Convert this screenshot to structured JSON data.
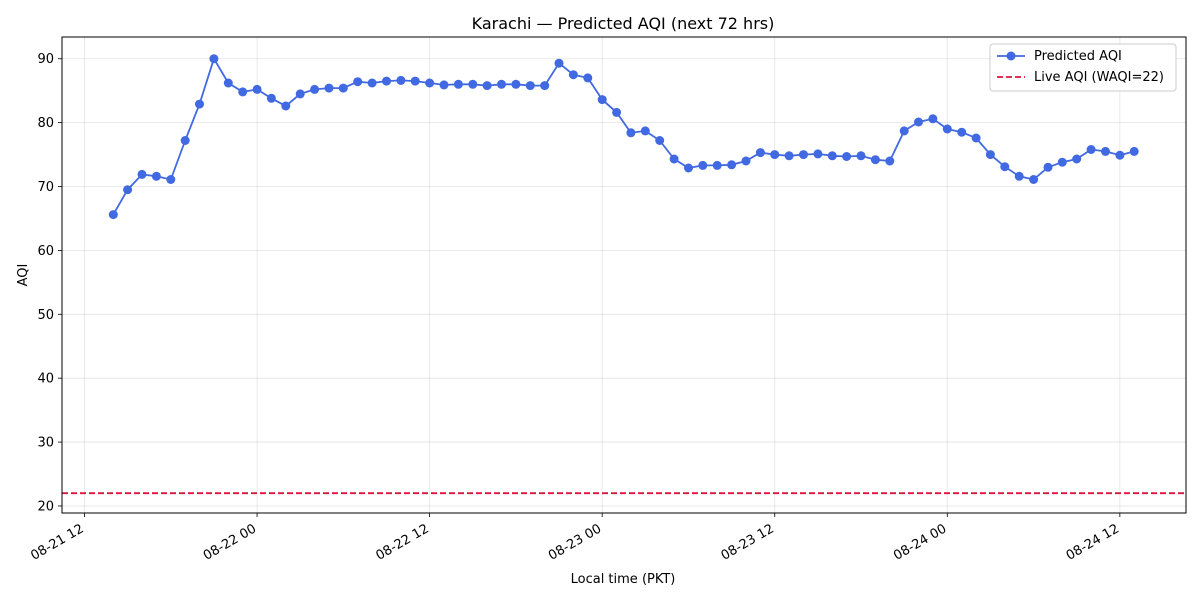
{
  "chart_data": {
    "type": "line",
    "title": "Karachi — Predicted AQI (next 72 hrs)",
    "xlabel": "Local time (PKT)",
    "ylabel": "AQI",
    "x_start": "08-21 14",
    "x_step_hours": 1,
    "x_ticks": [
      "08-21 12",
      "08-22 00",
      "08-22 12",
      "08-23 00",
      "08-23 12",
      "08-24 00",
      "08-24 12"
    ],
    "y_ticks": [
      20,
      30,
      40,
      50,
      60,
      70,
      80,
      90
    ],
    "ylim": [
      18.9,
      93.4
    ],
    "grid": true,
    "legend_position": "top-right",
    "series": [
      {
        "name": "Predicted AQI",
        "color": "#4169e1",
        "marker": "circle",
        "values": [
          65.6,
          69.5,
          71.9,
          71.6,
          71.1,
          77.2,
          82.9,
          90.0,
          86.2,
          84.8,
          85.2,
          83.8,
          82.6,
          84.5,
          85.2,
          85.4,
          85.4,
          86.4,
          86.2,
          86.5,
          86.6,
          86.5,
          86.2,
          85.9,
          86.0,
          86.0,
          85.8,
          86.0,
          86.0,
          85.8,
          85.8,
          89.3,
          87.5,
          87.0,
          83.6,
          81.6,
          78.4,
          78.7,
          77.2,
          74.3,
          72.9,
          73.3,
          73.3,
          73.4,
          74.0,
          75.3,
          75.0,
          74.8,
          75.0,
          75.1,
          74.8,
          74.7,
          74.8,
          74.2,
          74.0,
          78.7,
          80.1,
          80.6,
          79.0,
          78.5,
          77.6,
          75.0,
          73.1,
          71.6,
          71.1,
          73.0,
          73.8,
          74.3,
          75.8,
          75.5,
          74.9,
          75.5
        ]
      },
      {
        "name": "Live AQI (WAQI=22)",
        "color": "#dc143c",
        "style": "dashed",
        "value": 22
      }
    ]
  }
}
